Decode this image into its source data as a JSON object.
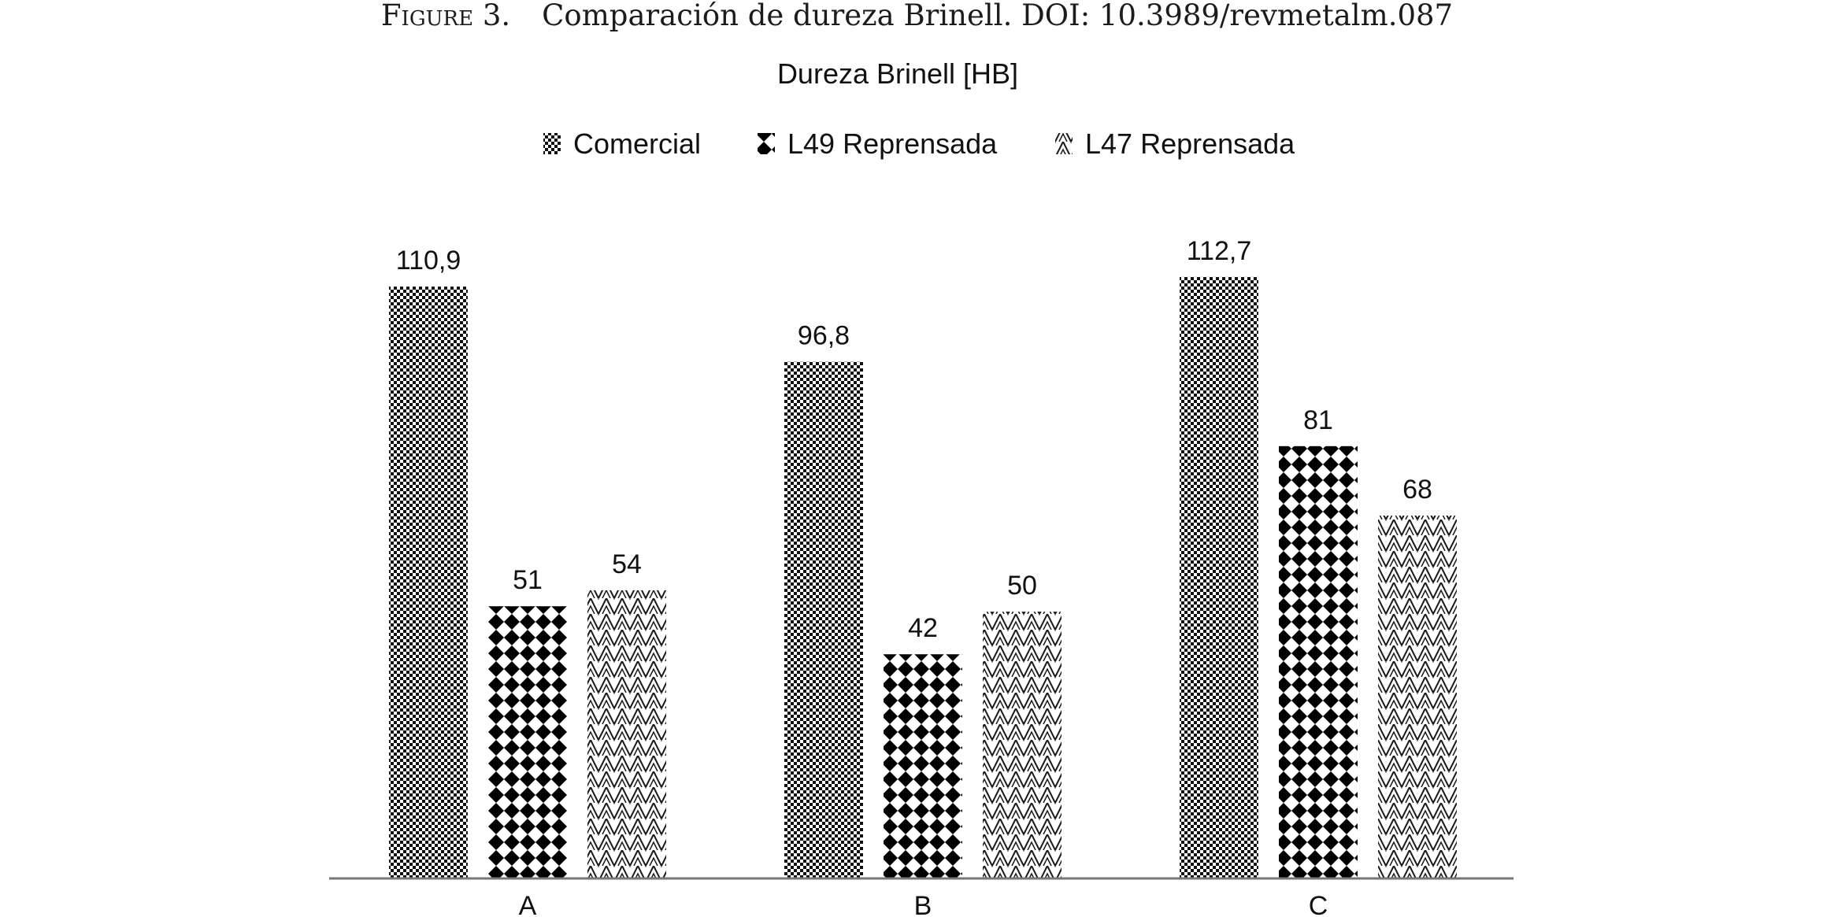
{
  "figure": {
    "label": "Figure 3.",
    "caption": "Comparación de dureza Brinell. DOI: 10.3989/revmetalm.087"
  },
  "chart_data": {
    "type": "bar",
    "title": "Dureza Brinell [HB]",
    "xlabel": "",
    "ylabel": "",
    "categories": [
      "A",
      "B",
      "C"
    ],
    "series": [
      {
        "name": "Comercial",
        "values": [
          110.9,
          96.8,
          112.7
        ],
        "labels": [
          "110,9",
          "96,8",
          "112,7"
        ],
        "pattern": "checker",
        "color": "#000000"
      },
      {
        "name": "L49 Reprensada",
        "values": [
          51,
          42,
          81
        ],
        "labels": [
          "51",
          "42",
          "81"
        ],
        "pattern": "diamond",
        "color": "#000000"
      },
      {
        "name": "L47 Reprensada",
        "values": [
          54,
          50,
          68
        ],
        "labels": [
          "54",
          "50",
          "68"
        ],
        "pattern": "zigzag",
        "color": "#000000"
      }
    ],
    "ylim": [
      0,
      120
    ],
    "grid": false,
    "legend": "top-center"
  }
}
